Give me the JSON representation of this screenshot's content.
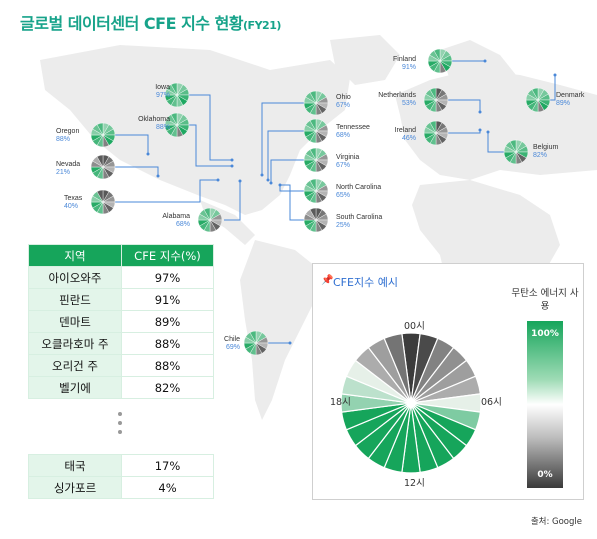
{
  "title": {
    "main": "글로벌 데이터센터 CFE 지수 현황",
    "suffix": "(FY21)"
  },
  "sites": [
    {
      "name": "Iowa",
      "pct": "97%",
      "score": 97
    },
    {
      "name": "Oklahoma",
      "pct": "88%",
      "score": 88
    },
    {
      "name": "Oregon",
      "pct": "88%",
      "score": 88
    },
    {
      "name": "Nevada",
      "pct": "21%",
      "score": 21
    },
    {
      "name": "Texas",
      "pct": "40%",
      "score": 40
    },
    {
      "name": "Alabama",
      "pct": "68%",
      "score": 68
    },
    {
      "name": "Ohio",
      "pct": "67%",
      "score": 67
    },
    {
      "name": "Tennessee",
      "pct": "68%",
      "score": 68
    },
    {
      "name": "Virginia",
      "pct": "67%",
      "score": 67
    },
    {
      "name": "North Carolina",
      "pct": "65%",
      "score": 65
    },
    {
      "name": "South Carolina",
      "pct": "25%",
      "score": 25
    },
    {
      "name": "Chile",
      "pct": "69%",
      "score": 69
    },
    {
      "name": "Finland",
      "pct": "91%",
      "score": 91
    },
    {
      "name": "Netherlands",
      "pct": "53%",
      "score": 53
    },
    {
      "name": "Denmark",
      "pct": "89%",
      "score": 89
    },
    {
      "name": "Ireland",
      "pct": "46%",
      "score": 46
    },
    {
      "name": "Belgium",
      "pct": "82%",
      "score": 82
    }
  ],
  "table": {
    "header": {
      "region": "지역",
      "cfe": "CFE 지수(%)"
    },
    "top_rows": [
      {
        "region": "아이오와주",
        "cfe": "97%"
      },
      {
        "region": "핀란드",
        "cfe": "91%"
      },
      {
        "region": "덴마트",
        "cfe": "89%"
      },
      {
        "region": "오클라호마 주",
        "cfe": "88%"
      },
      {
        "region": "오리건 주",
        "cfe": "88%"
      },
      {
        "region": "벨기에",
        "cfe": "82%"
      }
    ],
    "bottom_rows": [
      {
        "region": "태국",
        "cfe": "17%"
      },
      {
        "region": "싱가포르",
        "cfe": "4%"
      }
    ]
  },
  "example": {
    "title": "CFE지수 예시",
    "label_00": "00시",
    "label_06": "06시",
    "label_12": "12시",
    "label_18": "18시",
    "hourly_cfe": [
      0,
      5,
      25,
      30,
      35,
      40,
      50,
      75,
      100,
      100,
      100,
      100,
      100,
      100,
      100,
      100,
      100,
      100,
      70,
      60,
      50,
      40,
      35,
      20
    ]
  },
  "legend": {
    "title": "무탄소 에너지 사용",
    "top": "100%",
    "bottom": "0%"
  },
  "source": "출처: Google",
  "colors": {
    "green": "#16a55b",
    "title": "#17a38a",
    "blue_text": "#4a88d8",
    "line": "#4a88d8"
  }
}
